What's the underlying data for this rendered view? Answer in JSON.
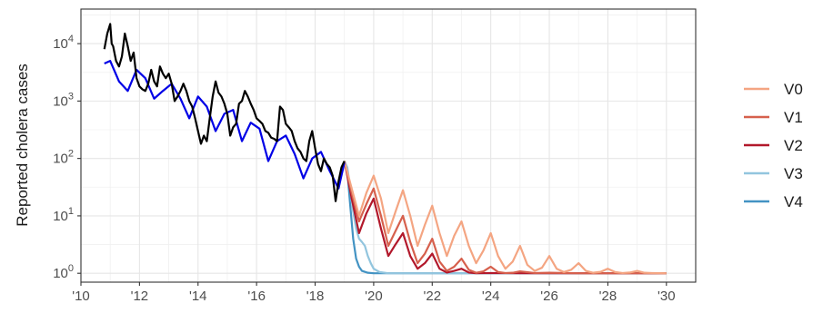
{
  "chart_data": {
    "type": "line",
    "title": "",
    "xlabel": "",
    "ylabel": "Reported cholera cases",
    "x_axis": {
      "range": [
        2010,
        2031
      ],
      "ticks": [
        2010,
        2012,
        2014,
        2016,
        2018,
        2020,
        2022,
        2024,
        2026,
        2028,
        2030
      ],
      "tick_labels": [
        "'10",
        "'12",
        "'14",
        "'16",
        "'18",
        "'20",
        "'22",
        "'24",
        "'26",
        "'28",
        "'30"
      ]
    },
    "y_axis": {
      "scale": "log10",
      "range": [
        0.7,
        40000
      ],
      "ticks": [
        1,
        10,
        100,
        1000,
        10000
      ],
      "tick_labels": [
        {
          "base": "10",
          "exp": "0"
        },
        {
          "base": "10",
          "exp": "1"
        },
        {
          "base": "10",
          "exp": "2"
        },
        {
          "base": "10",
          "exp": "3"
        },
        {
          "base": "10",
          "exp": "4"
        }
      ]
    },
    "grid": true,
    "legend": {
      "position": "right"
    },
    "observed": {
      "color": "#000000",
      "x": [
        2010.8,
        2010.9,
        2011.0,
        2011.05,
        2011.1,
        2011.2,
        2011.3,
        2011.4,
        2011.5,
        2011.6,
        2011.7,
        2011.8,
        2011.9,
        2012.0,
        2012.1,
        2012.2,
        2012.3,
        2012.4,
        2012.5,
        2012.6,
        2012.7,
        2012.8,
        2012.9,
        2013.0,
        2013.1,
        2013.2,
        2013.3,
        2013.4,
        2013.5,
        2013.6,
        2013.7,
        2013.8,
        2013.9,
        2014.0,
        2014.1,
        2014.2,
        2014.3,
        2014.4,
        2014.5,
        2014.6,
        2014.7,
        2014.8,
        2014.9,
        2015.0,
        2015.1,
        2015.2,
        2015.3,
        2015.4,
        2015.5,
        2015.6,
        2015.7,
        2015.8,
        2015.9,
        2016.0,
        2016.1,
        2016.2,
        2016.3,
        2016.4,
        2016.5,
        2016.6,
        2016.7,
        2016.8,
        2016.9,
        2017.0,
        2017.1,
        2017.2,
        2017.3,
        2017.4,
        2017.5,
        2017.6,
        2017.7,
        2017.8,
        2017.9,
        2018.0,
        2018.1,
        2018.2,
        2018.3,
        2018.4,
        2018.5,
        2018.6,
        2018.7,
        2018.8,
        2018.9,
        2019.0
      ],
      "y": [
        8000,
        15000,
        22000,
        10000,
        9000,
        5000,
        4000,
        6000,
        15000,
        9000,
        5000,
        7000,
        2500,
        1800,
        1600,
        1500,
        2000,
        3500,
        2200,
        1800,
        4000,
        3000,
        2500,
        3000,
        2000,
        1000,
        1200,
        1500,
        2000,
        1500,
        1000,
        800,
        500,
        300,
        180,
        250,
        200,
        500,
        1200,
        2200,
        1400,
        1200,
        900,
        600,
        250,
        350,
        400,
        900,
        1000,
        1500,
        1200,
        900,
        700,
        500,
        450,
        400,
        300,
        280,
        230,
        220,
        200,
        800,
        700,
        400,
        350,
        300,
        200,
        150,
        130,
        100,
        90,
        200,
        300,
        150,
        80,
        60,
        100,
        80,
        70,
        50,
        18,
        40,
        70,
        90
      ]
    },
    "fitted": {
      "color": "#0000e6",
      "x": [
        2010.8,
        2011.0,
        2011.3,
        2011.6,
        2011.9,
        2012.2,
        2012.5,
        2012.8,
        2013.1,
        2013.4,
        2013.7,
        2014.0,
        2014.3,
        2014.6,
        2014.9,
        2015.2,
        2015.5,
        2015.8,
        2016.1,
        2016.4,
        2016.7,
        2017.0,
        2017.3,
        2017.6,
        2017.9,
        2018.2,
        2018.5,
        2018.8,
        2019.0
      ],
      "y": [
        4500,
        5000,
        2200,
        1500,
        3500,
        2500,
        1100,
        1500,
        2000,
        1100,
        500,
        1200,
        800,
        300,
        600,
        700,
        200,
        420,
        330,
        90,
        200,
        250,
        120,
        45,
        100,
        130,
        60,
        30,
        85
      ]
    },
    "series": [
      {
        "name": "V0",
        "color": "#f4a582",
        "x": [
          2019.0,
          2019.25,
          2019.5,
          2019.75,
          2020.0,
          2020.25,
          2020.5,
          2020.75,
          2021.0,
          2021.25,
          2021.5,
          2021.75,
          2022.0,
          2022.25,
          2022.5,
          2022.75,
          2023.0,
          2023.25,
          2023.5,
          2023.75,
          2024.0,
          2024.25,
          2024.5,
          2024.75,
          2025.0,
          2025.25,
          2025.5,
          2025.75,
          2026.0,
          2026.25,
          2026.5,
          2026.75,
          2027.0,
          2027.25,
          2027.5,
          2027.75,
          2028.0,
          2028.25,
          2028.5,
          2028.75,
          2029.0,
          2029.25,
          2029.5,
          2030.0
        ],
        "y": [
          90,
          30,
          10,
          25,
          50,
          20,
          5,
          12,
          28,
          10,
          3,
          7,
          15,
          5,
          2,
          4.5,
          8,
          3,
          1.5,
          2.5,
          5,
          2,
          1.2,
          1.6,
          3,
          1.4,
          1.1,
          1.25,
          2,
          1.2,
          1.05,
          1.15,
          1.5,
          1.1,
          1.02,
          1.06,
          1.2,
          1.05,
          1.01,
          1.03,
          1.1,
          1.02,
          1.01,
          1.0
        ]
      },
      {
        "name": "V1",
        "color": "#d6604d",
        "x": [
          2019.0,
          2019.25,
          2019.5,
          2019.75,
          2020.0,
          2020.25,
          2020.5,
          2020.75,
          2021.0,
          2021.25,
          2021.5,
          2021.75,
          2022.0,
          2022.25,
          2022.5,
          2022.75,
          2023.0,
          2023.25,
          2023.5,
          2023.75,
          2024.0,
          2024.25,
          2024.5,
          2024.75,
          2025.0,
          2025.5,
          2026.0,
          2027.0,
          2028.0,
          2030.0
        ],
        "y": [
          90,
          25,
          8,
          16,
          30,
          10,
          3,
          5.5,
          10,
          3.5,
          1.5,
          2.2,
          4,
          1.6,
          1.1,
          1.3,
          1.8,
          1.15,
          1.02,
          1.08,
          1.3,
          1.05,
          1.01,
          1.02,
          1.08,
          1.01,
          1.02,
          1.0,
          1.0,
          1.0
        ]
      },
      {
        "name": "V2",
        "color": "#b2182b",
        "x": [
          2019.0,
          2019.25,
          2019.5,
          2019.75,
          2020.0,
          2020.25,
          2020.5,
          2020.75,
          2021.0,
          2021.25,
          2021.5,
          2021.75,
          2022.0,
          2022.25,
          2022.5,
          2022.75,
          2023.0,
          2023.25,
          2023.5,
          2024.0,
          2025.0,
          2026.0,
          2028.0,
          2030.0
        ],
        "y": [
          90,
          20,
          5,
          11,
          20,
          6,
          2,
          3.2,
          5,
          2,
          1.2,
          1.5,
          2.2,
          1.2,
          1.03,
          1.1,
          1.2,
          1.03,
          1.0,
          1.01,
          1.0,
          1.0,
          1.0,
          1.0
        ]
      },
      {
        "name": "V3",
        "color": "#92c5de",
        "x": [
          2019.0,
          2019.1,
          2019.2,
          2019.3,
          2019.4,
          2019.5,
          2019.6,
          2019.7,
          2019.8,
          2019.9,
          2020.0,
          2020.2,
          2020.5,
          2021.0,
          2022.0,
          2030.0
        ],
        "y": [
          90,
          70,
          30,
          12,
          6,
          4,
          3.5,
          3,
          2,
          1.5,
          1.2,
          1.05,
          1.0,
          1.0,
          1.0,
          1.0
        ]
      },
      {
        "name": "V4",
        "color": "#4393c3",
        "x": [
          2019.0,
          2019.1,
          2019.2,
          2019.3,
          2019.4,
          2019.5,
          2019.6,
          2019.8,
          2020.0,
          2021.0,
          2030.0
        ],
        "y": [
          90,
          60,
          15,
          4,
          1.8,
          1.3,
          1.1,
          1.02,
          1.0,
          1.0,
          1.0
        ]
      }
    ]
  }
}
